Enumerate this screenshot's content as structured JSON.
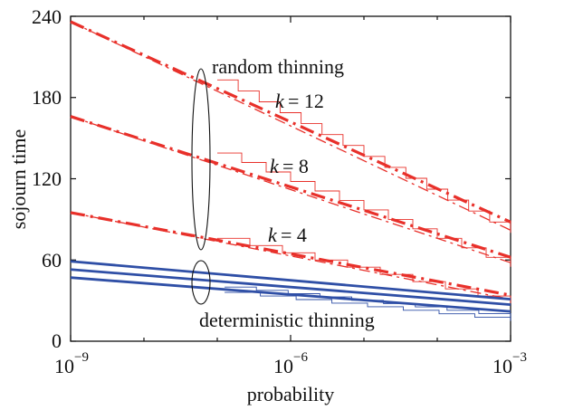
{
  "chart_data": {
    "type": "line",
    "xscale": "log10",
    "xlabel": "probability",
    "ylabel": "sojourn time",
    "xlim_exp": [
      -9,
      -3
    ],
    "ylim": [
      0,
      240
    ],
    "x_ticks": [
      {
        "base": "10",
        "exp": "−9"
      },
      {
        "base": "10",
        "exp": "−6"
      },
      {
        "base": "10",
        "exp": "−3"
      }
    ],
    "y_ticks": [
      "0",
      "60",
      "120",
      "180",
      "240"
    ],
    "y_tick_values": [
      0,
      60,
      120,
      180,
      240
    ],
    "colors": {
      "random": "#e8302a",
      "deterministic": "#2f4fa6"
    },
    "series": [
      {
        "name": "random thinning k=12 (approx)",
        "group": "random",
        "style": "dashdot-thick",
        "x_exp": [
          -9,
          -3
        ],
        "y": [
          236,
          88
        ]
      },
      {
        "name": "random thinning k=12 (exact)",
        "group": "random",
        "style": "dashdot-thin",
        "x_exp": [
          -9,
          -3
        ],
        "y": [
          236,
          82
        ]
      },
      {
        "name": "random thinning k=8 (approx)",
        "group": "random",
        "style": "dashdot-thick",
        "x_exp": [
          -9,
          -3
        ],
        "y": [
          166,
          62
        ]
      },
      {
        "name": "random thinning k=8 (exact)",
        "group": "random",
        "style": "dashdot-thin",
        "x_exp": [
          -9,
          -3
        ],
        "y": [
          166,
          58
        ]
      },
      {
        "name": "random thinning k=4 (approx)",
        "group": "random",
        "style": "dashdot-thick",
        "x_exp": [
          -9,
          -3
        ],
        "y": [
          95,
          34
        ]
      },
      {
        "name": "random thinning k=4 (exact)",
        "group": "random",
        "style": "dashdot-thin",
        "x_exp": [
          -9,
          -3
        ],
        "y": [
          95,
          31
        ]
      },
      {
        "name": "deterministic thinning 1",
        "group": "deterministic",
        "style": "solid",
        "x_exp": [
          -9,
          -3
        ],
        "y": [
          59,
          31
        ]
      },
      {
        "name": "deterministic thinning 2",
        "group": "deterministic",
        "style": "solid",
        "x_exp": [
          -9,
          -3
        ],
        "y": [
          53,
          27
        ]
      },
      {
        "name": "deterministic thinning 3",
        "group": "deterministic",
        "style": "solid",
        "x_exp": [
          -9,
          -3
        ],
        "y": [
          47,
          22
        ]
      }
    ],
    "staircases": [
      {
        "group": "random",
        "x_exp": [
          -7.0,
          -3
        ],
        "y_start": 193,
        "y_end": 80,
        "steps": 14
      },
      {
        "group": "random",
        "x_exp": [
          -7.0,
          -3
        ],
        "y_start": 139,
        "y_end": 55,
        "steps": 12
      },
      {
        "group": "random",
        "x_exp": [
          -7.0,
          -3
        ],
        "y_start": 76,
        "y_end": 28,
        "steps": 9
      },
      {
        "group": "deterministic",
        "x_exp": [
          -6.9,
          -3
        ],
        "y_start": 40,
        "y_end": 18,
        "steps": 9
      },
      {
        "group": "deterministic",
        "x_exp": [
          -6.9,
          -3
        ],
        "y_start": 36,
        "y_end": 15,
        "steps": 8
      }
    ],
    "annotations": {
      "random_thinning": "random thinning",
      "deterministic_thinning": "deterministic thinning",
      "k_symbol": "k",
      "k12": "= 12",
      "k8": "= 8",
      "k4": "= 4"
    }
  }
}
